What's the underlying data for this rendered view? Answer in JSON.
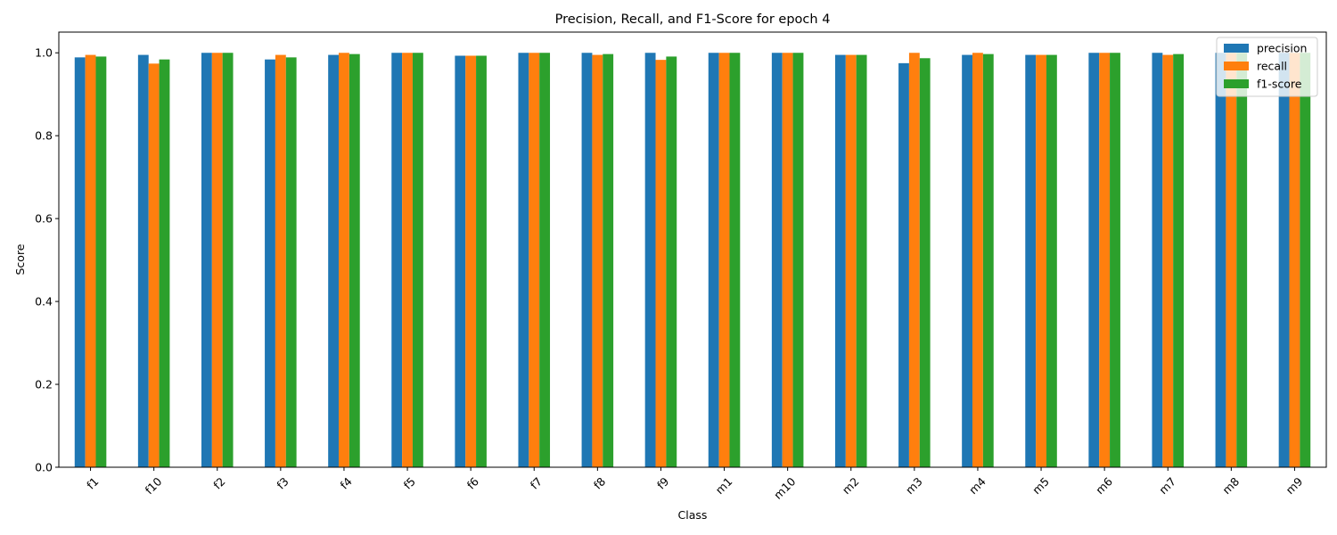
{
  "chart_data": {
    "type": "bar",
    "title": "Precision, Recall, and F1-Score for epoch 4",
    "xlabel": "Class",
    "ylabel": "Score",
    "ylim": [
      0,
      1.05
    ],
    "yticks": [
      0.0,
      0.2,
      0.4,
      0.6,
      0.8,
      1.0
    ],
    "ytick_labels": [
      "0.0",
      "0.2",
      "0.4",
      "0.6",
      "0.8",
      "1.0"
    ],
    "grid": false,
    "legend_position": "top-right",
    "categories": [
      "f1",
      "f10",
      "f2",
      "f3",
      "f4",
      "f5",
      "f6",
      "f7",
      "f8",
      "f9",
      "m1",
      "m10",
      "m2",
      "m3",
      "m4",
      "m5",
      "m6",
      "m7",
      "m8",
      "m9"
    ],
    "series": [
      {
        "name": "precision",
        "color": "#1f77b4",
        "values": [
          0.989,
          0.995,
          1.0,
          0.984,
          0.995,
          1.0,
          0.993,
          1.0,
          1.0,
          1.0,
          1.0,
          1.0,
          0.995,
          0.975,
          0.995,
          0.995,
          1.0,
          1.0,
          1.0,
          1.0
        ]
      },
      {
        "name": "recall",
        "color": "#ff7f0e",
        "values": [
          0.995,
          0.974,
          1.0,
          0.995,
          1.0,
          1.0,
          0.993,
          1.0,
          0.995,
          0.983,
          1.0,
          1.0,
          0.995,
          1.0,
          1.0,
          0.995,
          1.0,
          0.995,
          1.0,
          1.0
        ]
      },
      {
        "name": "f1-score",
        "color": "#2ca02c",
        "values": [
          0.991,
          0.984,
          1.0,
          0.989,
          0.997,
          1.0,
          0.993,
          1.0,
          0.997,
          0.991,
          1.0,
          1.0,
          0.995,
          0.987,
          0.997,
          0.995,
          1.0,
          0.997,
          1.0,
          1.0
        ]
      }
    ]
  }
}
